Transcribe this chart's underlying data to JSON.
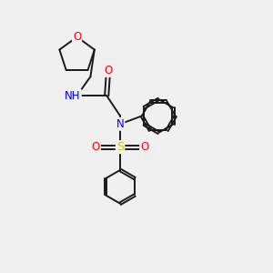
{
  "bg_color": "#f0f0f0",
  "bond_color": "#1a1a1a",
  "atom_colors": {
    "O": "#ff0000",
    "N": "#0000ff",
    "S": "#cccc00",
    "C": "#1a1a1a",
    "H": "#888888"
  },
  "figsize": [
    3.0,
    3.0
  ],
  "dpi": 100,
  "lw": 1.4,
  "fs": 8.5,
  "ring_r": 0.62
}
